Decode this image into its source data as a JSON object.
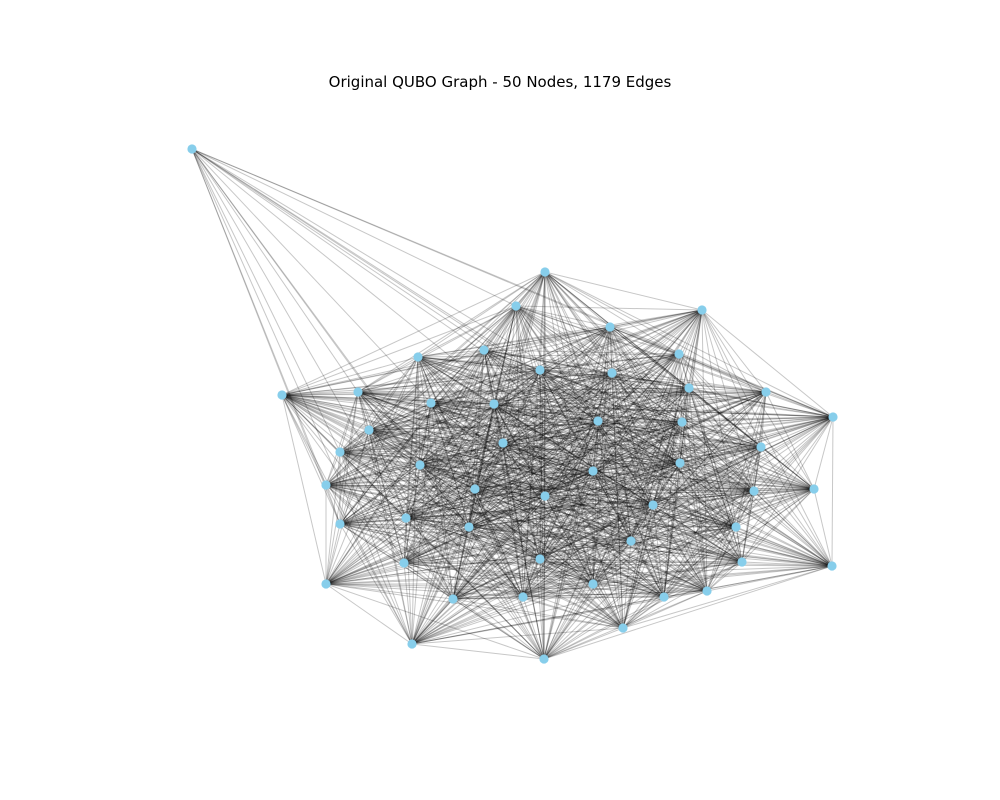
{
  "title": "Original QUBO Graph - 50 Nodes, 1179 Edges",
  "graph": {
    "node_count": 50,
    "edge_count": 1179,
    "node_color": "#87CEEB",
    "edge_color": "#000000",
    "edge_opacity": 0.22
  }
}
